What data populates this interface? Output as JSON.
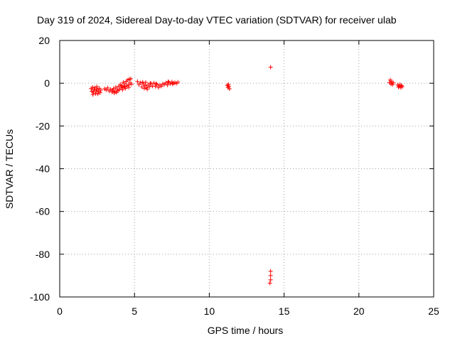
{
  "chart_data": {
    "type": "scatter",
    "title": "Day 319 of 2024, Sidereal Day-to-day VTEC variation (SDTVAR) for receiver ulab",
    "xlabel": "GPS time / hours",
    "ylabel": "SDTVAR / TECUs",
    "xlim": [
      0,
      25
    ],
    "ylim": [
      -100,
      20
    ],
    "xticks": [
      "0",
      "5",
      "10",
      "15",
      "20",
      "25"
    ],
    "yticks": [
      "20",
      "0",
      "-20",
      "-40",
      "-60",
      "-80",
      "-100"
    ],
    "grid": true,
    "marker": "plus",
    "color": "#ff0000",
    "series": [
      {
        "name": "SDTVAR",
        "points": [
          [
            2.1,
            -2.5
          ],
          [
            2.15,
            -3.8
          ],
          [
            2.2,
            -1.9
          ],
          [
            2.25,
            -4.2
          ],
          [
            2.3,
            -3.0
          ],
          [
            2.35,
            -2.2
          ],
          [
            2.4,
            -4.8
          ],
          [
            2.45,
            -3.5
          ],
          [
            2.5,
            -2.8
          ],
          [
            2.55,
            -5.0
          ],
          [
            2.6,
            -3.9
          ],
          [
            2.65,
            -2.4
          ],
          [
            2.7,
            -4.4
          ],
          [
            2.75,
            -3.2
          ],
          [
            2.22,
            -5.3
          ],
          [
            2.48,
            -1.6
          ],
          [
            3.0,
            -2.6
          ],
          [
            3.1,
            -3.1
          ],
          [
            3.2,
            -2.2
          ],
          [
            3.3,
            -3.6
          ],
          [
            3.4,
            -2.9
          ],
          [
            3.5,
            -4.1
          ],
          [
            3.55,
            -3.3
          ],
          [
            3.6,
            -2.5
          ],
          [
            3.65,
            -4.6
          ],
          [
            3.7,
            -3.8
          ],
          [
            3.75,
            -1.9
          ],
          [
            3.8,
            -4.3
          ],
          [
            3.85,
            -2.8
          ],
          [
            3.9,
            -3.5
          ],
          [
            3.95,
            -1.4
          ],
          [
            4.0,
            -2.9
          ],
          [
            4.05,
            -0.6
          ],
          [
            4.1,
            -2.2
          ],
          [
            4.15,
            -1.1
          ],
          [
            4.2,
            -3.0
          ],
          [
            4.25,
            0.4
          ],
          [
            4.3,
            -1.8
          ],
          [
            4.35,
            -0.3
          ],
          [
            4.4,
            -2.4
          ],
          [
            4.45,
            0.9
          ],
          [
            4.5,
            -1.2
          ],
          [
            4.55,
            1.5
          ],
          [
            4.6,
            -0.8
          ],
          [
            4.65,
            1.9
          ],
          [
            4.7,
            0.2
          ],
          [
            4.75,
            2.1
          ],
          [
            4.8,
            -0.4
          ],
          [
            4.2,
            -2.0
          ],
          [
            4.35,
            -1.5
          ],
          [
            4.62,
            -1.9
          ],
          [
            5.2,
            0.8
          ],
          [
            5.3,
            -0.6
          ],
          [
            5.4,
            0.2
          ],
          [
            5.5,
            -1.7
          ],
          [
            5.6,
            -0.3
          ],
          [
            5.65,
            -2.4
          ],
          [
            5.7,
            -1.1
          ],
          [
            5.75,
            0.4
          ],
          [
            5.8,
            -2.0
          ],
          [
            5.9,
            -0.8
          ],
          [
            6.0,
            -1.6
          ],
          [
            6.1,
            -0.2
          ],
          [
            6.2,
            -1.3
          ],
          [
            6.3,
            0.1
          ],
          [
            6.4,
            -1.5
          ],
          [
            6.5,
            -0.6
          ],
          [
            6.6,
            -2.0
          ],
          [
            6.7,
            -0.9
          ],
          [
            6.8,
            -1.4
          ],
          [
            6.9,
            -0.3
          ],
          [
            5.55,
            0.5
          ],
          [
            5.85,
            -2.8
          ],
          [
            6.05,
            0.0
          ],
          [
            6.45,
            -0.2
          ],
          [
            7.0,
            -0.5
          ],
          [
            7.1,
            0.2
          ],
          [
            7.2,
            -0.8
          ],
          [
            7.3,
            0.4
          ],
          [
            7.4,
            -0.2
          ],
          [
            7.5,
            0.6
          ],
          [
            7.6,
            0.1
          ],
          [
            7.7,
            0.3
          ],
          [
            7.8,
            -0.1
          ],
          [
            7.9,
            0.5
          ],
          [
            7.25,
            0.8
          ],
          [
            7.55,
            -0.4
          ],
          [
            11.2,
            -1.0
          ],
          [
            11.25,
            -2.0
          ],
          [
            11.3,
            -1.4
          ],
          [
            11.35,
            -2.6
          ],
          [
            11.28,
            -0.6
          ],
          [
            14.1,
            7.5
          ],
          [
            14.1,
            -88.0
          ],
          [
            14.1,
            -90.0
          ],
          [
            14.1,
            -92.0
          ],
          [
            14.05,
            -93.5
          ],
          [
            22.05,
            0.3
          ],
          [
            22.1,
            1.5
          ],
          [
            22.15,
            -0.3
          ],
          [
            22.2,
            0.8
          ],
          [
            22.25,
            -0.6
          ],
          [
            22.3,
            0.2
          ],
          [
            22.6,
            -0.8
          ],
          [
            22.7,
            -1.5
          ],
          [
            22.75,
            -0.6
          ],
          [
            22.8,
            -2.0
          ],
          [
            22.85,
            -1.1
          ],
          [
            22.9,
            -1.6
          ],
          [
            22.65,
            -1.8
          ]
        ]
      }
    ]
  }
}
